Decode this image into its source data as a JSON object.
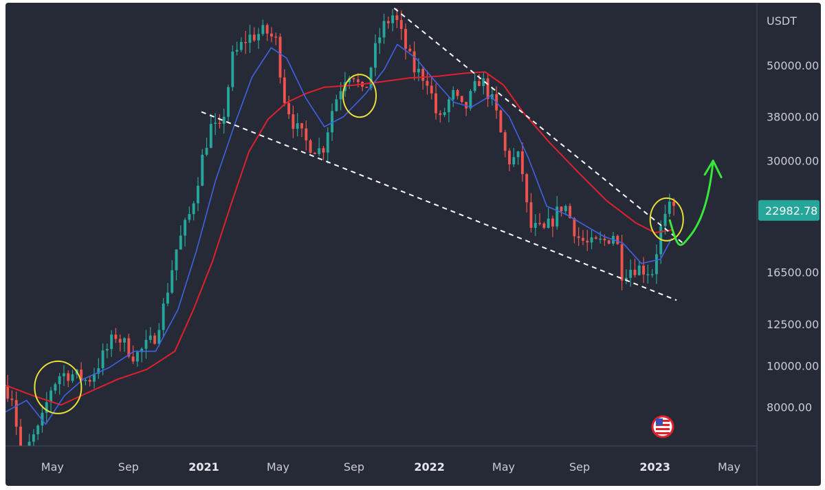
{
  "chart_data": {
    "type": "candlestick",
    "scale": "log",
    "y_unit": "USDT",
    "current_price": "22982.78",
    "y_ticks": [
      "8000.00",
      "10000.00",
      "12500.00",
      "16500.00",
      "22982.78",
      "30000.00",
      "38000.00",
      "50000.00"
    ],
    "y_tick_values": [
      8000,
      10000,
      12500,
      16500,
      30000,
      38000,
      50000
    ],
    "ylim": [
      6500,
      70000
    ],
    "x_ticks": [
      {
        "label": "May",
        "date": "2020-05",
        "bold": false
      },
      {
        "label": "Sep",
        "date": "2020-09",
        "bold": false
      },
      {
        "label": "2021",
        "date": "2021-01",
        "bold": true
      },
      {
        "label": "May",
        "date": "2021-05",
        "bold": false
      },
      {
        "label": "Sep",
        "date": "2021-09",
        "bold": false
      },
      {
        "label": "2022",
        "date": "2022-01",
        "bold": true
      },
      {
        "label": "May",
        "date": "2022-05",
        "bold": false
      },
      {
        "label": "Sep",
        "date": "2022-09",
        "bold": false
      },
      {
        "label": "2023",
        "date": "2023-01",
        "bold": true
      },
      {
        "label": "May",
        "date": "2023-05",
        "bold": false
      }
    ],
    "xlim": [
      "2020-02-15",
      "2023-06-15"
    ],
    "price_path": [
      [
        "2020-02-15",
        9000
      ],
      [
        "2020-03-01",
        8500
      ],
      [
        "2020-03-15",
        6000
      ],
      [
        "2020-04-01",
        6700
      ],
      [
        "2020-04-15",
        7200
      ],
      [
        "2020-05-01",
        8800
      ],
      [
        "2020-05-15",
        9500
      ],
      [
        "2020-06-01",
        9600
      ],
      [
        "2020-07-01",
        9200
      ],
      [
        "2020-07-25",
        10500
      ],
      [
        "2020-08-15",
        11800
      ],
      [
        "2020-09-15",
        10500
      ],
      [
        "2020-10-15",
        11500
      ],
      [
        "2020-11-01",
        13800
      ],
      [
        "2020-11-20",
        18500
      ],
      [
        "2020-12-15",
        23000
      ],
      [
        "2021-01-01",
        30000
      ],
      [
        "2021-01-15",
        36000
      ],
      [
        "2021-02-01",
        35000
      ],
      [
        "2021-02-20",
        52000
      ],
      [
        "2021-03-15",
        58000
      ],
      [
        "2021-04-15",
        60000
      ],
      [
        "2021-05-01",
        57000
      ],
      [
        "2021-05-15",
        42000
      ],
      [
        "2021-06-01",
        36000
      ],
      [
        "2021-06-20",
        33000
      ],
      [
        "2021-07-15",
        31500
      ],
      [
        "2021-08-01",
        40000
      ],
      [
        "2021-08-20",
        47000
      ],
      [
        "2021-09-01",
        49000
      ],
      [
        "2021-09-20",
        42000
      ],
      [
        "2021-10-05",
        52000
      ],
      [
        "2021-10-20",
        61000
      ],
      [
        "2021-11-08",
        66000
      ],
      [
        "2021-11-25",
        56000
      ],
      [
        "2021-12-10",
        49000
      ],
      [
        "2022-01-01",
        46500
      ],
      [
        "2022-01-20",
        36500
      ],
      [
        "2022-02-10",
        43000
      ],
      [
        "2022-03-01",
        39000
      ],
      [
        "2022-03-28",
        47000
      ],
      [
        "2022-04-20",
        40000
      ],
      [
        "2022-05-10",
        30000
      ],
      [
        "2022-06-01",
        30500
      ],
      [
        "2022-06-15",
        21000
      ],
      [
        "2022-07-10",
        20500
      ],
      [
        "2022-08-10",
        24000
      ],
      [
        "2022-09-01",
        20000
      ],
      [
        "2022-09-20",
        19000
      ],
      [
        "2022-10-15",
        19500
      ],
      [
        "2022-11-01",
        20500
      ],
      [
        "2022-11-12",
        16500
      ],
      [
        "2022-12-01",
        17000
      ],
      [
        "2022-12-31",
        16600
      ],
      [
        "2023-01-14",
        20800
      ],
      [
        "2023-01-28",
        23100
      ]
    ],
    "ma_short": [
      [
        "2020-02-15",
        7800
      ],
      [
        "2020-03-20",
        8300
      ],
      [
        "2020-04-20",
        7300
      ],
      [
        "2020-05-20",
        8500
      ],
      [
        "2020-06-20",
        9300
      ],
      [
        "2020-08-01",
        9900
      ],
      [
        "2020-09-10",
        10800
      ],
      [
        "2020-10-15",
        10800
      ],
      [
        "2020-11-20",
        13500
      ],
      [
        "2020-12-20",
        18500
      ],
      [
        "2021-01-20",
        27000
      ],
      [
        "2021-02-20",
        36500
      ],
      [
        "2021-03-20",
        47000
      ],
      [
        "2021-04-20",
        55000
      ],
      [
        "2021-05-15",
        52000
      ],
      [
        "2021-06-15",
        42000
      ],
      [
        "2021-07-15",
        36000
      ],
      [
        "2021-08-15",
        38000
      ],
      [
        "2021-09-20",
        43000
      ],
      [
        "2021-10-20",
        49000
      ],
      [
        "2021-11-10",
        56000
      ],
      [
        "2021-12-10",
        52000
      ],
      [
        "2022-01-10",
        46000
      ],
      [
        "2022-02-10",
        41000
      ],
      [
        "2022-03-10",
        40000
      ],
      [
        "2022-04-10",
        42500
      ],
      [
        "2022-05-10",
        38000
      ],
      [
        "2022-06-10",
        30500
      ],
      [
        "2022-07-10",
        23500
      ],
      [
        "2022-08-10",
        22500
      ],
      [
        "2022-09-10",
        21200
      ],
      [
        "2022-10-10",
        20000
      ],
      [
        "2022-11-10",
        19300
      ],
      [
        "2022-12-10",
        17300
      ],
      [
        "2023-01-10",
        17700
      ],
      [
        "2023-01-28",
        19800
      ]
    ],
    "ma_long": [
      [
        "2020-02-15",
        9000
      ],
      [
        "2020-04-01",
        8500
      ],
      [
        "2020-05-15",
        8100
      ],
      [
        "2020-07-01",
        8700
      ],
      [
        "2020-08-15",
        9300
      ],
      [
        "2020-10-01",
        9800
      ],
      [
        "2020-11-15",
        10800
      ],
      [
        "2020-12-15",
        13500
      ],
      [
        "2021-01-15",
        17500
      ],
      [
        "2021-02-15",
        24000
      ],
      [
        "2021-03-15",
        31500
      ],
      [
        "2021-04-15",
        37500
      ],
      [
        "2021-05-15",
        41000
      ],
      [
        "2021-06-15",
        43000
      ],
      [
        "2021-07-15",
        44500
      ],
      [
        "2021-09-01",
        45000
      ],
      [
        "2021-10-15",
        45800
      ],
      [
        "2021-12-01",
        46800
      ],
      [
        "2022-01-15",
        47200
      ],
      [
        "2022-03-01",
        48000
      ],
      [
        "2022-04-01",
        48300
      ],
      [
        "2022-05-01",
        45000
      ],
      [
        "2022-06-01",
        39000
      ],
      [
        "2022-07-15",
        33000
      ],
      [
        "2022-09-01",
        28000
      ],
      [
        "2022-10-15",
        24200
      ],
      [
        "2022-12-01",
        21500
      ],
      [
        "2023-01-01",
        20400
      ],
      [
        "2023-01-28",
        20700
      ]
    ],
    "trendlines": [
      {
        "from": [
          "2020-12-28",
          39000
        ],
        "to": [
          "2023-02-05",
          14200
        ]
      },
      {
        "from": [
          "2021-11-05",
          68000
        ],
        "to": [
          "2023-02-15",
          19300
        ]
      }
    ],
    "highlight_circles": [
      {
        "center": [
          "2020-05-10",
          8900
        ],
        "scope": "large"
      },
      {
        "center": [
          "2021-09-10",
          42500
        ],
        "scope": "medium"
      },
      {
        "center": [
          "2023-01-20",
          21900
        ],
        "scope": "medium"
      }
    ],
    "forecast_arrow": [
      [
        "2023-01-25",
        21800
      ],
      [
        "2023-02-20",
        19500
      ],
      [
        "2023-03-20",
        20500
      ],
      [
        "2023-04-05",
        30000
      ]
    ],
    "colors": {
      "background": "#262a36",
      "up": "#26a69a",
      "down": "#ef5350",
      "ma_short": "#3f63e6",
      "ma_long": "#e0212c",
      "trendline": "#ffffff",
      "circle": "#e8e336",
      "arrow": "#39e63c",
      "price_badge": "#26a69a"
    },
    "icons": [
      "us-flag-event-icon"
    ]
  }
}
